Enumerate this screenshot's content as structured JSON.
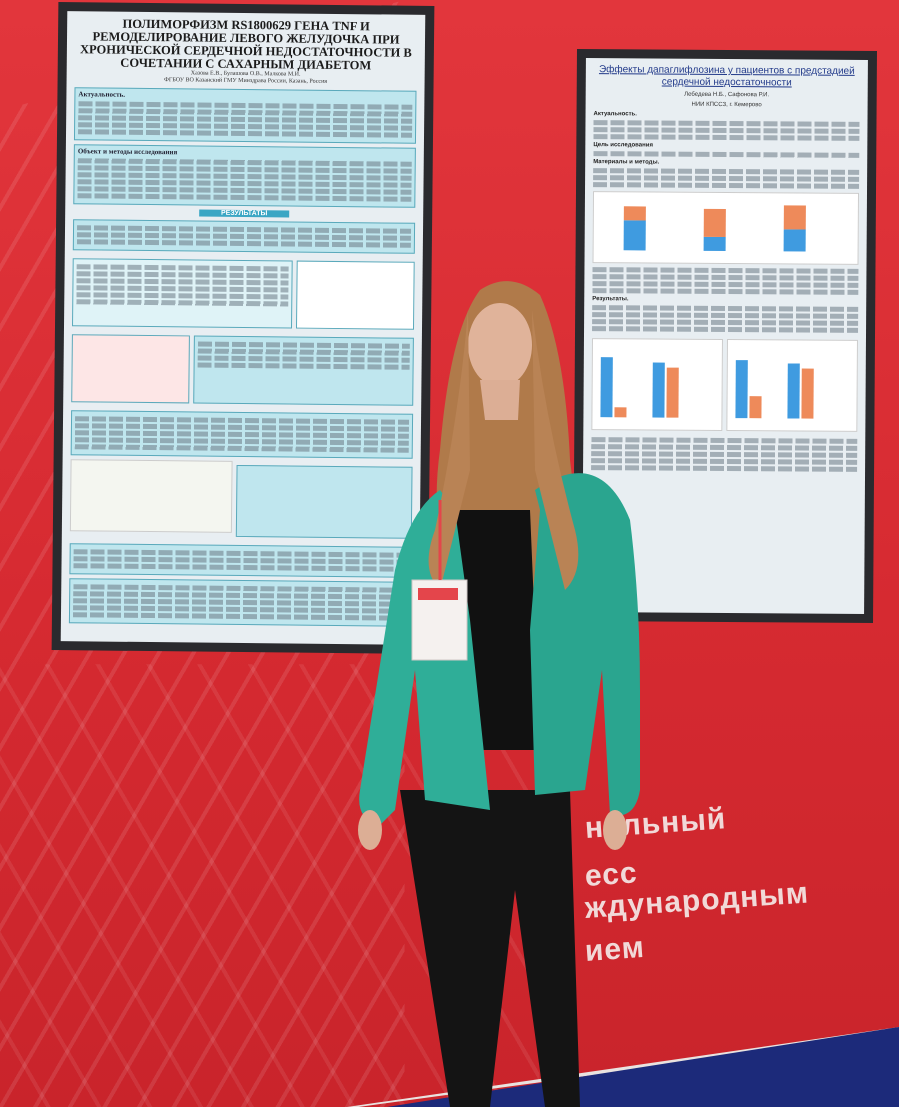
{
  "left_poster": {
    "title": "ПОЛИМОРФИЗМ RS1800629 ГЕНА TNF И РЕМОДЕЛИРОВАНИЕ ЛЕВОГО ЖЕЛУДОЧКА ПРИ ХРОНИЧЕСКОЙ СЕРДЕЧНОЙ НЕДОСТАТОЧНОСТИ В СОЧЕТАНИИ С САХАРНЫМ ДИАБЕТОМ",
    "authors": "Хазова Е.В., Булашова О.В., Малкова М.И.",
    "affiliation": "ФГБОУ ВО Казанский ГМУ Минздрава России, Казань, Россия",
    "sections": [
      "Актуальность.",
      "Объект и методы исследования",
      "РЕЗУЛЬТАТЫ"
    ]
  },
  "right_poster": {
    "title": "Эффекты дапаглифлозина у пациентов с предстадией сердечной недостаточности",
    "authors": "Лебедева Н.Б., Сафонова Р.И.",
    "affiliation": "НИИ КПССЗ, г. Кемерово",
    "sections": [
      "Актуальность.",
      "Цель исследования",
      "Материалы и методы.",
      "Результаты."
    ]
  },
  "wall_text": [
    "нальный",
    "есс",
    "ждународным",
    "ием"
  ],
  "colors": {
    "wall": "#d62a31",
    "jacket": "#2fae98",
    "screen": "#e8eef2",
    "carpet": "#1c2a7a"
  }
}
